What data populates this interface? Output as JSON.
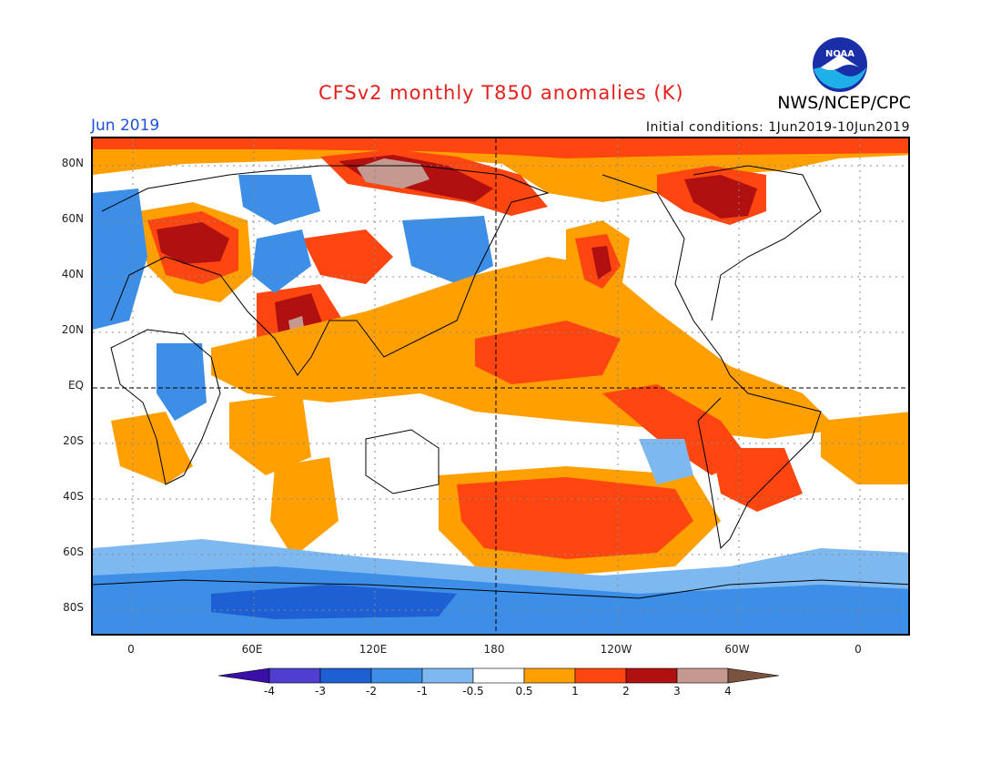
{
  "header": {
    "title": "CFSv2 monthly T850 anomalies (K)",
    "month": "Jun 2019",
    "initial_conditions": "Initial conditions: 1Jun2019-10Jun2019",
    "org": "NWS/NCEP/CPC",
    "logo_text": "NOAA"
  },
  "axes": {
    "lat_labels": [
      "80N",
      "60N",
      "40N",
      "20N",
      "EQ",
      "20S",
      "40S",
      "60S",
      "80S"
    ],
    "lon_labels": [
      "0",
      "60E",
      "120E",
      "180",
      "120W",
      "60W",
      "0"
    ]
  },
  "colorbar": {
    "labels": [
      "-4",
      "-3",
      "-2",
      "-1",
      "-0.5",
      "0.5",
      "1",
      "2",
      "3",
      "4"
    ],
    "colors": [
      "#3a0fa8",
      "#4f3fd0",
      "#1f5fd4",
      "#3d8ee6",
      "#7eb8f0",
      "#ffffff",
      "#ffa000",
      "#ff4510",
      "#b01010",
      "#c49a90",
      "#7a5240"
    ]
  }
}
